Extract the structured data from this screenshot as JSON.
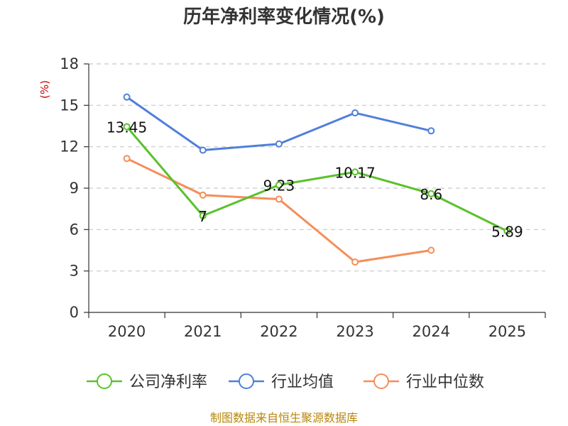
{
  "chart_data": {
    "type": "line",
    "title": "历年净利率变化情况(%)",
    "ylabel": "(%)",
    "categories": [
      "2020",
      "2021",
      "2022",
      "2023",
      "2024",
      "2025"
    ],
    "ylim": [
      0,
      18
    ],
    "yticks": [
      0,
      3,
      6,
      9,
      12,
      15,
      18
    ],
    "grid": true,
    "legend_position": "bottom",
    "series": [
      {
        "name": "公司净利率",
        "color": "#5ac12b",
        "values": [
          13.45,
          7,
          9.23,
          10.17,
          8.6,
          5.89
        ],
        "show_labels": true
      },
      {
        "name": "行业均值",
        "color": "#4f7fdb",
        "values": [
          15.6,
          11.75,
          12.2,
          14.45,
          13.15,
          null
        ],
        "show_labels": false
      },
      {
        "name": "行业中位数",
        "color": "#f58e5a",
        "values": [
          11.15,
          8.5,
          8.2,
          3.65,
          4.5,
          null
        ],
        "show_labels": false
      }
    ],
    "data_labels": [
      "13.45",
      "7",
      "9.23",
      "10.17",
      "8.6",
      "5.89"
    ]
  },
  "source_text": "制图数据来自恒生聚源数据库"
}
